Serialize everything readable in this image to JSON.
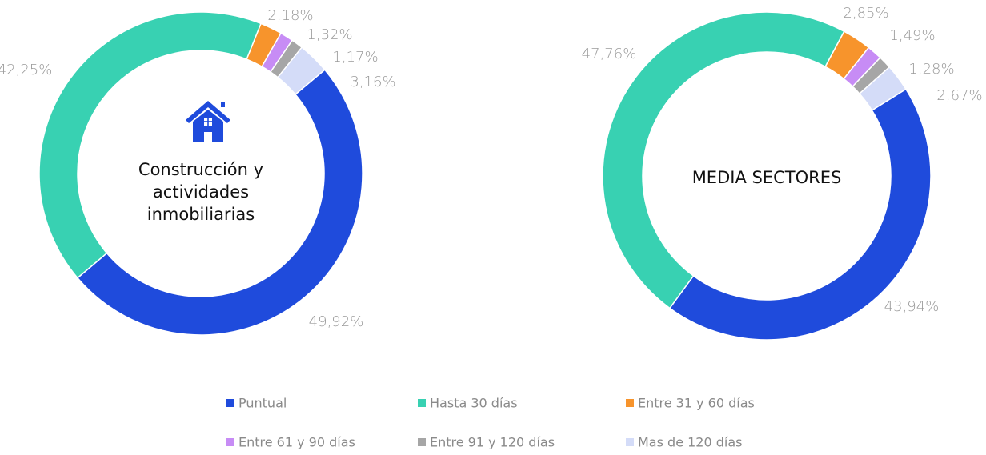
{
  "chart_data": [
    {
      "type": "donut",
      "title": "Construcción y\nactividades inmobiliarias",
      "categories": [
        "Puntual",
        "Hasta 30 días",
        "Entre 31 y 60 días",
        "Entre 61 y 90 días",
        "Entre 91 y 120 días",
        "Mas de 120 días"
      ],
      "colors": [
        "#1f4bdc",
        "#38d1b2",
        "#f7942c",
        "#c78cf5",
        "#a6a6a6",
        "#d4dcf8"
      ],
      "values": [
        49.92,
        42.25,
        2.18,
        1.32,
        1.17,
        3.16
      ],
      "value_labels": [
        "49,92%",
        "42,25%",
        "2,18%",
        "1,32%",
        "1,17%",
        "3,16%"
      ]
    },
    {
      "type": "donut",
      "title": "MEDIA SECTORES",
      "values": [
        43.94,
        47.76,
        2.85,
        1.49,
        1.28,
        2.67
      ],
      "value_labels": [
        "43,94%",
        "47,76%",
        "2,85%",
        "1,49%",
        "1,28%",
        "2,67%"
      ]
    }
  ]
}
